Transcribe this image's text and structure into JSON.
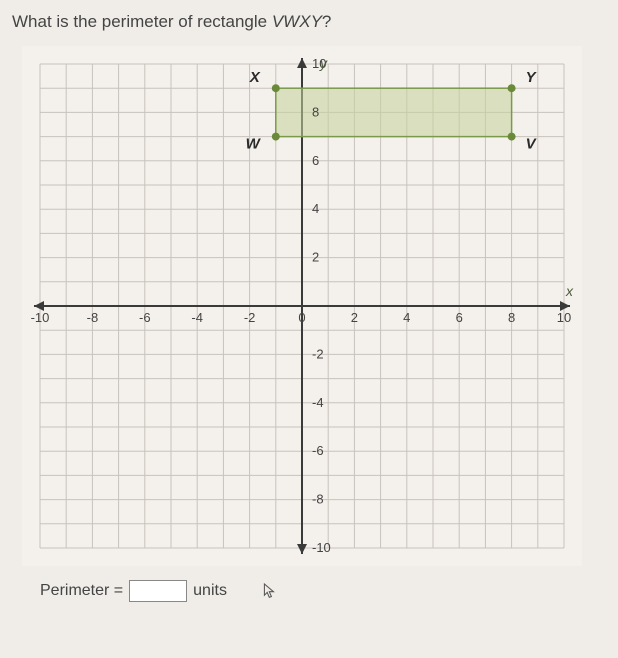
{
  "question": {
    "prefix": "What is the perimeter of rectangle ",
    "rect_name": "VWXY",
    "suffix": "?"
  },
  "graph": {
    "xmin": -10,
    "xmax": 10,
    "ymin": -10,
    "ymax": 10,
    "tick_step": 2,
    "xticks": [
      -10,
      -8,
      -6,
      -4,
      -2,
      0,
      2,
      4,
      6,
      8,
      10
    ],
    "yticks": [
      -10,
      -8,
      -6,
      -4,
      -2,
      2,
      4,
      6,
      8,
      10
    ],
    "grid_color": "#c8c2bc",
    "axis_color": "#3a3a3a",
    "background": "#f4f0ec",
    "axis_label_x": "x",
    "axis_label_y": "y",
    "axis_label_color": "#4a5a3a",
    "tick_font_size": 13,
    "axis_label_font_size": 14,
    "points": {
      "X": {
        "x": -1,
        "y": 9
      },
      "Y": {
        "x": 8,
        "y": 9
      },
      "W": {
        "x": -1,
        "y": 7
      },
      "V": {
        "x": 8,
        "y": 7
      }
    },
    "point_color": "#6a8a3a",
    "point_radius": 4,
    "rect_fill": "#c5d49a",
    "rect_fill_opacity": 0.55,
    "rect_stroke": "#7a9a4a",
    "rect_stroke_width": 1.5,
    "label_font_size": 15,
    "label_color": "#2a2a2a",
    "label_weight": "bold"
  },
  "answer": {
    "label_prefix": "Perimeter =",
    "units": "units",
    "value": ""
  }
}
